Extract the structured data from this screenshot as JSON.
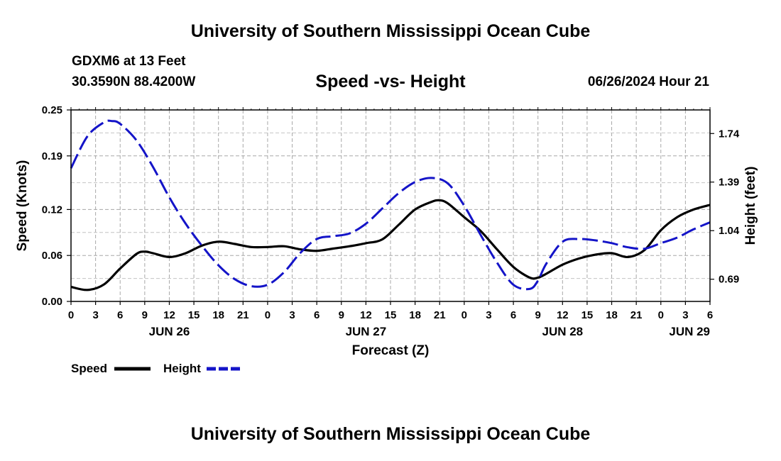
{
  "header": {
    "title": "University of Southern Mississippi Ocean Cube",
    "station": "GDXM6 at 13 Feet",
    "coordinates": "30.3590N  88.4200W",
    "timestamp": "06/26/2024 Hour 21"
  },
  "footer": {
    "title": "University of Southern Mississippi Ocean Cube"
  },
  "chart_data": {
    "type": "line",
    "title": "Speed -vs- Height",
    "xlabel": "Forecast (Z)",
    "ylabel_left": "Speed (Knots)",
    "ylabel_right": "Height (feet)",
    "x_unit": "hours since 2024-06-26 00Z",
    "xlim": [
      0,
      78
    ],
    "x_ticks": [
      0,
      3,
      6,
      9,
      12,
      15,
      18,
      21,
      24,
      27,
      30,
      33,
      36,
      39,
      42,
      45,
      48,
      51,
      54,
      57,
      60,
      63,
      66,
      69,
      72,
      75,
      78
    ],
    "x_tick_labels": [
      "0",
      "3",
      "6",
      "9",
      "12",
      "15",
      "18",
      "21",
      "0",
      "3",
      "6",
      "9",
      "12",
      "15",
      "18",
      "21",
      "0",
      "3",
      "6",
      "9",
      "12",
      "15",
      "18",
      "21",
      "0",
      "3",
      "6"
    ],
    "date_labels": [
      {
        "label": "JUN 26",
        "x": 12
      },
      {
        "label": "JUN 27",
        "x": 36
      },
      {
        "label": "JUN 28",
        "x": 60
      },
      {
        "label": "JUN 29",
        "x": 78
      }
    ],
    "ylim_left": [
      0,
      0.25
    ],
    "y_ticks_left": [
      0.0,
      0.06,
      0.12,
      0.19,
      0.25
    ],
    "y_tick_labels_left": [
      "0.00",
      "0.06",
      "0.12",
      "0.19",
      "0.25"
    ],
    "ylim_right": [
      0.53,
      1.91
    ],
    "y_ticks_right": [
      0.69,
      1.04,
      1.39,
      1.74
    ],
    "y_tick_labels_right": [
      "0.69",
      "1.04",
      "1.39",
      "1.74"
    ],
    "grid": true,
    "legend_position": "bottom-left",
    "series": [
      {
        "name": "Speed",
        "axis": "left",
        "color": "#000000",
        "style": "solid",
        "x": [
          0,
          2,
          4,
          6,
          8,
          9,
          10,
          12,
          14,
          16,
          18,
          20,
          22,
          24,
          26,
          28,
          30,
          32,
          34,
          36,
          38,
          40,
          42,
          44,
          45,
          46,
          48,
          50,
          52,
          54,
          56,
          57,
          58,
          60,
          62,
          64,
          66,
          68,
          70,
          72,
          74,
          76,
          78
        ],
        "values": [
          0.019,
          0.015,
          0.022,
          0.043,
          0.062,
          0.065,
          0.063,
          0.058,
          0.063,
          0.073,
          0.078,
          0.075,
          0.071,
          0.071,
          0.072,
          0.068,
          0.066,
          0.069,
          0.072,
          0.076,
          0.081,
          0.1,
          0.12,
          0.13,
          0.132,
          0.128,
          0.11,
          0.092,
          0.068,
          0.045,
          0.031,
          0.031,
          0.036,
          0.048,
          0.056,
          0.061,
          0.063,
          0.058,
          0.067,
          0.093,
          0.11,
          0.12,
          0.126
        ]
      },
      {
        "name": "Height",
        "axis": "right",
        "color": "#1414c8",
        "style": "dashed",
        "x": [
          0,
          2,
          4,
          5,
          6,
          8,
          10,
          12,
          14,
          16,
          18,
          20,
          22,
          24,
          26,
          28,
          30,
          32,
          34,
          36,
          38,
          40,
          42,
          44,
          46,
          48,
          50,
          52,
          54,
          56,
          57,
          58,
          60,
          62,
          64,
          66,
          68,
          70,
          72,
          74,
          76,
          78
        ],
        "values": [
          1.49,
          1.72,
          1.82,
          1.83,
          1.81,
          1.69,
          1.5,
          1.28,
          1.09,
          0.93,
          0.79,
          0.69,
          0.64,
          0.65,
          0.74,
          0.88,
          0.98,
          1.0,
          1.02,
          1.09,
          1.2,
          1.31,
          1.39,
          1.42,
          1.38,
          1.22,
          1.01,
          0.81,
          0.65,
          0.62,
          0.68,
          0.8,
          0.96,
          0.98,
          0.97,
          0.95,
          0.92,
          0.91,
          0.95,
          0.99,
          1.05,
          1.1
        ]
      }
    ]
  }
}
